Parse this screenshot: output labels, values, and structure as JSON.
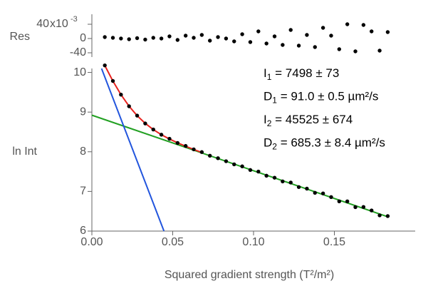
{
  "chart_data": [
    {
      "type": "scatter",
      "y_label": "Res",
      "multiplier_base": "x10",
      "multiplier_exponent": "-3",
      "xlim": [
        0,
        0.2
      ],
      "ylim": [
        -0.052,
        0.068
      ],
      "yticks": [
        {
          "value": 0.04,
          "label": "40"
        },
        0,
        {
          "value": -0.04,
          "label": "-40"
        }
      ],
      "series": [
        {
          "mode": "markers",
          "color": "#000000",
          "x": [
            0.008,
            0.013,
            0.018,
            0.023,
            0.028,
            0.033,
            0.038,
            0.043,
            0.048,
            0.053,
            0.058,
            0.063,
            0.068,
            0.073,
            0.078,
            0.083,
            0.088,
            0.093,
            0.098,
            0.103,
            0.108,
            0.113,
            0.118,
            0.123,
            0.128,
            0.133,
            0.138,
            0.143,
            0.148,
            0.153,
            0.158,
            0.163,
            0.168,
            0.173,
            0.178,
            0.183
          ],
          "values": [
            0.004,
            0.002,
            0.0,
            -0.002,
            0.001,
            -0.003,
            0.002,
            0.0,
            0.006,
            -0.004,
            0.008,
            0.002,
            0.01,
            -0.006,
            0.004,
            0.0,
            -0.008,
            0.012,
            -0.01,
            0.02,
            -0.014,
            0.006,
            -0.018,
            0.024,
            -0.02,
            0.01,
            -0.024,
            0.03,
            0.008,
            -0.03,
            0.04,
            -0.036,
            0.038,
            0.02,
            -0.034,
            0.018
          ]
        }
      ]
    },
    {
      "type": "scatter",
      "x_label": "Squared gradient strength (T²/m²)",
      "y_label": "ln Int",
      "xlim": [
        0,
        0.2
      ],
      "ylim": [
        6,
        10.1
      ],
      "xticks": [
        {
          "value": 0,
          "label": "0.00"
        },
        {
          "value": 0.05,
          "label": "0.05"
        },
        {
          "value": 0.1,
          "label": "0.10"
        },
        {
          "value": 0.15,
          "label": "0.15"
        }
      ],
      "yticks": [
        6,
        7,
        8,
        9,
        10
      ],
      "series": [
        {
          "mode": "line",
          "color": "#22a022",
          "x": [
            0,
            0.183
          ],
          "values": [
            8.922,
            6.36
          ]
        },
        {
          "mode": "line",
          "color": "#2255dd",
          "x": [
            0.006,
            0.0446
          ],
          "values": [
            10.097,
            6.0
          ]
        },
        {
          "mode": "line",
          "color": "#e8231f",
          "x": [
            0.008,
            0.013,
            0.018,
            0.023,
            0.028,
            0.033,
            0.038,
            0.043,
            0.048,
            0.053,
            0.058,
            0.063,
            0.068
          ],
          "values": [
            10.174,
            9.783,
            9.44,
            9.149,
            8.91,
            8.716,
            8.559,
            8.43,
            8.321,
            8.226,
            8.139,
            8.059,
            7.982
          ]
        },
        {
          "mode": "markers",
          "color": "#000000",
          "x": [
            0.008,
            0.013,
            0.018,
            0.023,
            0.028,
            0.033,
            0.038,
            0.043,
            0.048,
            0.053,
            0.058,
            0.063,
            0.068,
            0.073,
            0.078,
            0.083,
            0.088,
            0.093,
            0.098,
            0.103,
            0.108,
            0.113,
            0.118,
            0.123,
            0.128,
            0.133,
            0.138,
            0.143,
            0.148,
            0.153,
            0.158,
            0.163,
            0.168,
            0.173,
            0.178,
            0.183
          ],
          "values": [
            10.178,
            9.785,
            9.44,
            9.147,
            8.911,
            8.713,
            8.561,
            8.43,
            8.327,
            8.222,
            8.147,
            8.061,
            7.992,
            7.901,
            7.838,
            7.762,
            7.683,
            7.632,
            7.54,
            7.5,
            7.396,
            7.346,
            7.252,
            7.224,
            7.11,
            7.07,
            6.966,
            6.95,
            6.858,
            6.75,
            6.75,
            6.604,
            6.608,
            6.52,
            6.396,
            6.378
          ]
        }
      ],
      "annotations": [
        {
          "symbol": "I",
          "sub": "1",
          "text": " = 7498 ± 73"
        },
        {
          "symbol": "D",
          "sub": "1",
          "text": " = 91.0 ± 0.5 µm²/s"
        },
        {
          "symbol": "I",
          "sub": "2",
          "text": " = 45525 ± 674"
        },
        {
          "symbol": "D",
          "sub": "2",
          "text": " = 685.3 ± 8.4 µm²/s"
        }
      ]
    }
  ]
}
